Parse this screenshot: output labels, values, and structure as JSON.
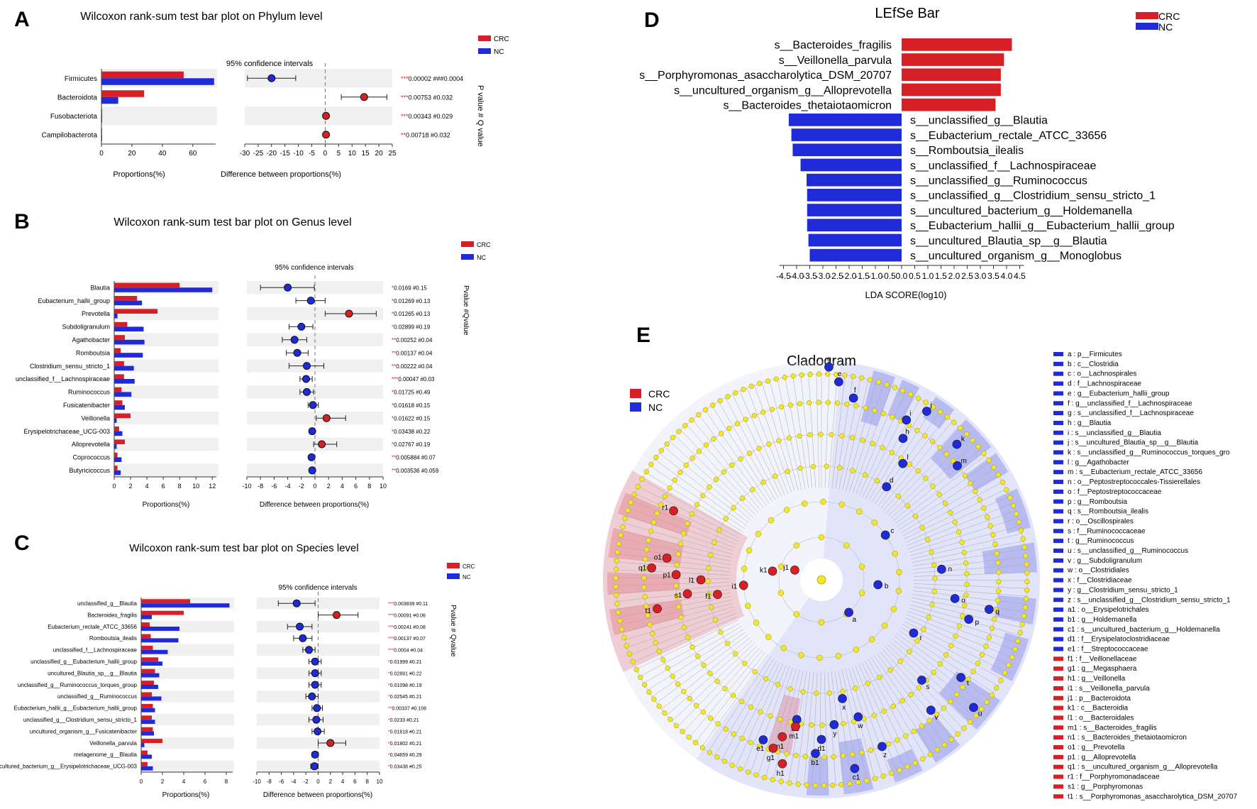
{
  "colors": {
    "crc": "#d81f26",
    "nc": "#1f2bd8",
    "node": "#f2e62a",
    "grid": "#f0f0f0"
  },
  "panel_a": {
    "letter": "A",
    "title": "Wilcoxon rank-sum test bar plot on Phylum level",
    "legend": [
      "CRC",
      "NC"
    ],
    "ci_title": "95% confidence intervals",
    "left_xlabel": "Proportions(%)",
    "right_xlabel": "Difference between proportions(%)",
    "side_label": "P value # Q value",
    "left_ticks": [
      "0",
      "20",
      "40",
      "60"
    ],
    "right_ticks": [
      "-30",
      "-25",
      "-20",
      "-15",
      "-10",
      "-5",
      "0",
      "5",
      "10",
      "15",
      "20",
      "25"
    ]
  },
  "panel_b": {
    "letter": "B",
    "title": "Wilcoxon rank-sum test bar plot on Genus level",
    "legend": [
      "CRC",
      "NC"
    ],
    "ci_title": "95% confidence intervals",
    "left_xlabel": "Proportions(%)",
    "right_xlabel": "Difference between proportions(%)",
    "side_label": "Pvalue #Qvalue",
    "left_ticks": [
      "0",
      "2",
      "4",
      "6",
      "8",
      "10",
      "12"
    ],
    "right_ticks": [
      "-10",
      "-8",
      "-6",
      "-4",
      "-2",
      "0",
      "2",
      "4",
      "6",
      "8",
      "10"
    ]
  },
  "panel_c": {
    "letter": "C",
    "title": "Wilcoxon rank-sum test bar plot on Species level",
    "legend": [
      "CRC",
      "NC"
    ],
    "ci_title": "95% confidence intervals",
    "left_xlabel": "Proportions(%)",
    "right_xlabel": "Difference between proportions(%)",
    "side_label": "Pvalue # Qvalue",
    "left_ticks": [
      "0",
      "2",
      "4",
      "6",
      "8"
    ],
    "right_ticks": [
      "-10",
      "-8",
      "-6",
      "-4",
      "-2",
      "0",
      "2",
      "4",
      "6",
      "8",
      "10"
    ]
  },
  "panel_d": {
    "letter": "D",
    "title": "LEfSe Bar",
    "legend": [
      "CRC",
      "NC"
    ],
    "xlabel": "LDA SCORE(log10)",
    "ticks": [
      "-4.5",
      "-4.0",
      "-3.5",
      "-3.0",
      "-2.5",
      "-2.0",
      "-1.5",
      "-1.0",
      "-0.5",
      "0.0",
      "0.5",
      "1.0",
      "1.5",
      "2.0",
      "2.5",
      "3.0",
      "3.5",
      "4.0",
      "4.5"
    ]
  },
  "panel_e": {
    "letter": "E",
    "title": "Cladogram",
    "legend": [
      "CRC",
      "NC"
    ],
    "nc_sectors": [
      "e",
      "f",
      "g",
      "h",
      "i",
      "j",
      "k",
      "m",
      "n",
      "o",
      "p",
      "q",
      "r",
      "s",
      "t",
      "u",
      "v",
      "w",
      "x",
      "y",
      "z",
      "a1",
      "b1",
      "c1",
      "d1",
      "e1"
    ],
    "crc_sectors": [
      "f1",
      "g1",
      "h1",
      "i1",
      "j1",
      "k1",
      "l1",
      "m1",
      "n1",
      "o1",
      "p1",
      "q1",
      "r1",
      "s1",
      "t1"
    ],
    "labels": [
      {
        "id": "a",
        "text": "a : p__Firmicutes",
        "group": "NC"
      },
      {
        "id": "b",
        "text": "b : c__Clostridia",
        "group": "NC"
      },
      {
        "id": "c",
        "text": "c : o__Lachnospirales",
        "group": "NC"
      },
      {
        "id": "d",
        "text": "d : f__Lachnospiraceae",
        "group": "NC"
      },
      {
        "id": "e",
        "text": "e : g__Eubacterium_hallii_group",
        "group": "NC"
      },
      {
        "id": "f",
        "text": "f : g__unclassified_f__Lachnospiraceae",
        "group": "NC"
      },
      {
        "id": "g",
        "text": "g : s__unclassified_f__Lachnospiraceae",
        "group": "NC"
      },
      {
        "id": "h",
        "text": "h : g__Blautia",
        "group": "NC"
      },
      {
        "id": "i",
        "text": "i : s__unclassified_g__Blautia",
        "group": "NC"
      },
      {
        "id": "j",
        "text": "j : s__uncultured_Blautia_sp__g__Blautia",
        "group": "NC"
      },
      {
        "id": "k",
        "text": "k : s__unclassified_g__Ruminococcus_torques_gro",
        "group": "NC"
      },
      {
        "id": "l",
        "text": "l : g__Agathobacter",
        "group": "NC"
      },
      {
        "id": "m",
        "text": "m : s__Eubacterium_rectale_ATCC_33656",
        "group": "NC"
      },
      {
        "id": "n",
        "text": "n : o__Peptostreptococcales-Tissierellales",
        "group": "NC"
      },
      {
        "id": "o",
        "text": "o : f__Peptostreptococcaceae",
        "group": "NC"
      },
      {
        "id": "p",
        "text": "p : g__Romboutsia",
        "group": "NC"
      },
      {
        "id": "q",
        "text": "q : s__Romboutsia_ilealis",
        "group": "NC"
      },
      {
        "id": "r",
        "text": "r : o__Oscillospirales",
        "group": "NC"
      },
      {
        "id": "s",
        "text": "s : f__Ruminococcaceae",
        "group": "NC"
      },
      {
        "id": "t",
        "text": "t : g__Ruminococcus",
        "group": "NC"
      },
      {
        "id": "u",
        "text": "u : s__unclassified_g__Ruminococcus",
        "group": "NC"
      },
      {
        "id": "v",
        "text": "v : g__Subdoligranulum",
        "group": "NC"
      },
      {
        "id": "w",
        "text": "w : o__Clostridiales",
        "group": "NC"
      },
      {
        "id": "x",
        "text": "x : f__Clostridiaceae",
        "group": "NC"
      },
      {
        "id": "y",
        "text": "y : g__Clostridium_sensu_stricto_1",
        "group": "NC"
      },
      {
        "id": "z",
        "text": "z : s__unclassified_g__Clostridium_sensu_stricto_1",
        "group": "NC"
      },
      {
        "id": "a1",
        "text": "a1 : o__Erysipelotrichales",
        "group": "NC"
      },
      {
        "id": "b1",
        "text": "b1 : g__Holdemanella",
        "group": "NC"
      },
      {
        "id": "c1",
        "text": "c1 : s__uncultured_bacterium_g__Holdemanella",
        "group": "NC"
      },
      {
        "id": "d1",
        "text": "d1 : f__Erysipelatoclostridiaceae",
        "group": "NC"
      },
      {
        "id": "e1",
        "text": "e1 : f__Streptococcaceae",
        "group": "NC"
      },
      {
        "id": "f1",
        "text": "f1 : f__Veillonellaceae",
        "group": "CRC"
      },
      {
        "id": "g1",
        "text": "g1 : g__Megasphaera",
        "group": "CRC"
      },
      {
        "id": "h1",
        "text": "h1 : g__Veillonella",
        "group": "CRC"
      },
      {
        "id": "i1",
        "text": "i1 : s__Veillonella_parvula",
        "group": "CRC"
      },
      {
        "id": "j1",
        "text": "j1 : p__Bacteroidota",
        "group": "CRC"
      },
      {
        "id": "k1",
        "text": "k1 : c__Bacteroidia",
        "group": "CRC"
      },
      {
        "id": "l1",
        "text": "l1 : o__Bacteroidales",
        "group": "CRC"
      },
      {
        "id": "m1",
        "text": "m1 : s__Bacteroides_fragilis",
        "group": "CRC"
      },
      {
        "id": "n1",
        "text": "n1 : s__Bacteroides_thetaiotaomicron",
        "group": "CRC"
      },
      {
        "id": "o1",
        "text": "o1 : g__Prevotella",
        "group": "CRC"
      },
      {
        "id": "p1",
        "text": "p1 : g__Alloprevotella",
        "group": "CRC"
      },
      {
        "id": "q1",
        "text": "q1 : s__uncultured_organism_g__Alloprevotella",
        "group": "CRC"
      },
      {
        "id": "r1",
        "text": "r1 : f__Porphyromonadaceae",
        "group": "CRC"
      },
      {
        "id": "s1",
        "text": "s1 : g__Porphyromonas",
        "group": "CRC"
      },
      {
        "id": "t1",
        "text": "t1 : s__Porphyromonas_asaccharolytica_DSM_20707",
        "group": "CRC"
      }
    ]
  },
  "chart_data": [
    {
      "panel": "A",
      "type": "bar",
      "title": "Wilcoxon rank-sum test bar plot on Phylum level",
      "xlabel": "Proportions(%)",
      "xlim": [
        0,
        75
      ],
      "categories": [
        "Firmicutes",
        "Bacteroidota",
        "Fusobacteriota",
        "Campilobacterota"
      ],
      "series": [
        {
          "name": "CRC",
          "values": [
            54,
            28,
            0.5,
            0.4
          ]
        },
        {
          "name": "NC",
          "values": [
            74,
            11,
            0.2,
            0.1
          ]
        }
      ],
      "ci": {
        "xlabel": "Difference between proportions(%)",
        "xlim": [
          -30,
          25
        ],
        "estimate": [
          -20,
          14.5,
          0.3,
          0.3
        ],
        "low": [
          -29,
          6,
          0.1,
          0.1
        ],
        "high": [
          -11,
          23,
          0.5,
          0.5
        ],
        "favored": [
          "NC",
          "CRC",
          "CRC",
          "CRC"
        ],
        "stars": [
          "***",
          "***",
          "***",
          "**"
        ],
        "pq": [
          "0.00002 ###0.0004",
          "0.00753 #0.032",
          "0.00343 #0.029",
          "0.00718 #0.032"
        ]
      }
    },
    {
      "panel": "B",
      "type": "bar",
      "title": "Wilcoxon rank-sum test bar plot on Genus level",
      "xlabel": "Proportions(%)",
      "xlim": [
        0,
        12.5
      ],
      "categories": [
        "Blautia",
        "Eubacterium_hallii_group",
        "Prevotella",
        "Subdoligranulum",
        "Agathobacter",
        "Romboutsia",
        "Clostridium_sensu_stricto_1",
        "unclassified_f__Lachnospiraceae",
        "Ruminococcus",
        "Fusicatenibacter",
        "Veillonella",
        "Erysipelotrichaceae_UCG-003",
        "Alloprevotella",
        "Coprococcus",
        "Butyricicoccus"
      ],
      "series": [
        {
          "name": "CRC",
          "values": [
            8.0,
            2.8,
            5.3,
            1.6,
            1.3,
            0.8,
            1.2,
            1.2,
            0.9,
            1.0,
            2.0,
            0.6,
            1.3,
            0.4,
            0.4
          ]
        },
        {
          "name": "NC",
          "values": [
            12.0,
            3.4,
            0.4,
            3.6,
            3.7,
            3.5,
            2.4,
            2.5,
            2.1,
            1.3,
            0.3,
            1.0,
            0.3,
            0.9,
            0.8
          ]
        }
      ],
      "ci": {
        "xlabel": "Difference between proportions(%)",
        "xlim": [
          -10,
          10
        ],
        "estimate": [
          -4.0,
          -0.6,
          5.0,
          -2.0,
          -3.0,
          -2.6,
          -1.2,
          -1.3,
          -1.2,
          -0.3,
          1.7,
          -0.4,
          1.0,
          -0.5,
          -0.4
        ],
        "low": [
          -8.0,
          -2.8,
          1.5,
          -3.8,
          -4.8,
          -4.2,
          -3.8,
          -2.2,
          -2.2,
          -1.0,
          0.2,
          -0.8,
          -0.2,
          -0.9,
          -0.8
        ],
        "high": [
          -0.1,
          1.5,
          9.0,
          -0.3,
          -1.2,
          -1.0,
          1.3,
          -0.4,
          -0.2,
          0.5,
          4.5,
          0.0,
          3.2,
          -0.1,
          0.0
        ],
        "favored": [
          "NC",
          "NC",
          "CRC",
          "NC",
          "NC",
          "NC",
          "NC",
          "NC",
          "NC",
          "NC",
          "CRC",
          "NC",
          "CRC",
          "NC",
          "NC"
        ],
        "stars": [
          "*",
          "*",
          "*",
          "*",
          "**",
          "**",
          "**",
          "***",
          "*",
          "*",
          "*",
          "*",
          "*",
          "**",
          "**"
        ],
        "pq": [
          "0.0169 #0.15",
          "0.01269 #0.13",
          "0.01265 #0.13",
          "0.02899 #0.19",
          "0.00252 #0.04",
          "0.00137 #0.04",
          "0.00222 #0.04",
          "0.00047 #0.03",
          "0.01725 #0.49",
          "0.01618 #0.15",
          "0.01622 #0.15",
          "0.03438 #0.22",
          "0.02767 #0.19",
          "0.005884 #0.07",
          "0.003536 #0.059"
        ]
      }
    },
    {
      "panel": "C",
      "type": "bar",
      "title": "Wilcoxon rank-sum test bar plot on Species level",
      "xlabel": "Proportions(%)",
      "xlim": [
        0,
        8.6
      ],
      "categories": [
        "unclassified_g__Blautia",
        "Bacteroides_fragilis",
        "Eubacterium_rectale_ATCC_33656",
        "Romboutsia_ilealis",
        "unclassified_f__Lachnospiraceae",
        "unclassified_g__Eubacterium_hallii_group",
        "uncultured_Blautia_sp__g__Blautia",
        "unclassified_g__Ruminococcus_torques_group",
        "unclassified_g__Ruminococcus",
        "Eubacterium_hallii_g__Eubacterium_hallii_group",
        "unclassified_g__Clostridium_sensu_stricto_1",
        "uncultured_organism_g__Fusicatenibacter",
        "Veillonella_parvula",
        "metagenome_g__Blautia",
        "uncultured_bacterium_g__Erysipelotrichaceae_UCG-003"
      ],
      "series": [
        {
          "name": "CRC",
          "values": [
            4.6,
            4.0,
            0.8,
            0.9,
            1.1,
            1.6,
            1.3,
            1.2,
            1.0,
            1.1,
            1.0,
            1.1,
            2.0,
            0.6,
            0.6
          ]
        },
        {
          "name": "NC",
          "values": [
            8.3,
            1.0,
            3.6,
            3.5,
            2.5,
            2.0,
            1.7,
            1.6,
            1.9,
            1.3,
            1.3,
            1.2,
            0.3,
            1.0,
            1.1
          ]
        }
      ],
      "ci": {
        "xlabel": "Difference between proportions(%)",
        "xlim": [
          -10,
          10
        ],
        "estimate": [
          -3.5,
          3.0,
          -3.0,
          -2.5,
          -1.5,
          -0.5,
          -0.5,
          -0.5,
          -1.0,
          -0.2,
          -0.3,
          -0.1,
          2.0,
          -0.5,
          -0.6
        ],
        "low": [
          -6.5,
          0.0,
          -5.0,
          -4.0,
          -2.5,
          -1.5,
          -1.5,
          -1.5,
          -2.0,
          -1.0,
          -1.5,
          -1.0,
          0.0,
          -1.0,
          -1.2
        ],
        "high": [
          -0.5,
          6.5,
          -1.0,
          -1.0,
          -0.5,
          0.5,
          0.5,
          0.5,
          0.0,
          0.7,
          0.8,
          1.0,
          4.5,
          0.0,
          0.0
        ],
        "favored": [
          "NC",
          "CRC",
          "NC",
          "NC",
          "NC",
          "NC",
          "NC",
          "NC",
          "NC",
          "NC",
          "NC",
          "NC",
          "CRC",
          "NC",
          "NC"
        ],
        "stars": [
          "***",
          "***",
          "***",
          "***",
          "***",
          "*",
          "*",
          "*",
          "*",
          "**",
          "*",
          "*",
          "*",
          "*",
          "*"
        ],
        "pq": [
          "0.003839 #0.11",
          "0.00091 #0.06",
          "0.00241 #0.08",
          "0.00137 #0.07",
          "0.0004 #0.04",
          "0.01999 #0.21",
          "0.02891 #0.22",
          "0.01098 #0.19",
          "0.02545 #0.21",
          "0.00337 #0.106",
          "0.0233 #0.21",
          "0.01618 #0.21",
          "0.01802 #0.21",
          "0.04659 #0.29",
          "0.03438 #0.25"
        ]
      }
    },
    {
      "panel": "D",
      "type": "bar",
      "title": "LEfSe Bar",
      "xlabel": "LDA SCORE(log10)",
      "xlim": [
        -4.5,
        4.5
      ],
      "categories": [
        "s__Bacteroides_fragilis",
        "s__Veillonella_parvula",
        "s__Porphyromonas_asaccharolytica_DSM_20707",
        "s__uncultured_organism_g__Alloprevotella",
        "s__Bacteroides_thetaiotaomicron",
        "s__unclassified_g__Blautia",
        "s__Eubacterium_rectale_ATCC_33656",
        "s__Romboutsia_ilealis",
        "s__unclassified_f__Lachnospiraceae",
        "s__unclassified_g__Ruminococcus",
        "s__unclassified_g__Clostridium_sensu_stricto_1",
        "s__uncultured_bacterium_g__Holdemanella",
        "s__Eubacterium_hallii_g__Eubacterium_hallii_group",
        "s__uncultured_Blautia_sp__g__Blautia",
        "s__uncultured_organism_g__Monoglobus"
      ],
      "values": [
        4.2,
        3.9,
        3.78,
        3.78,
        3.58,
        -4.3,
        -4.2,
        -4.15,
        -3.85,
        -3.62,
        -3.6,
        -3.6,
        -3.6,
        -3.55,
        -3.5
      ],
      "groups": [
        "CRC",
        "CRC",
        "CRC",
        "CRC",
        "CRC",
        "NC",
        "NC",
        "NC",
        "NC",
        "NC",
        "NC",
        "NC",
        "NC",
        "NC",
        "NC"
      ]
    }
  ]
}
